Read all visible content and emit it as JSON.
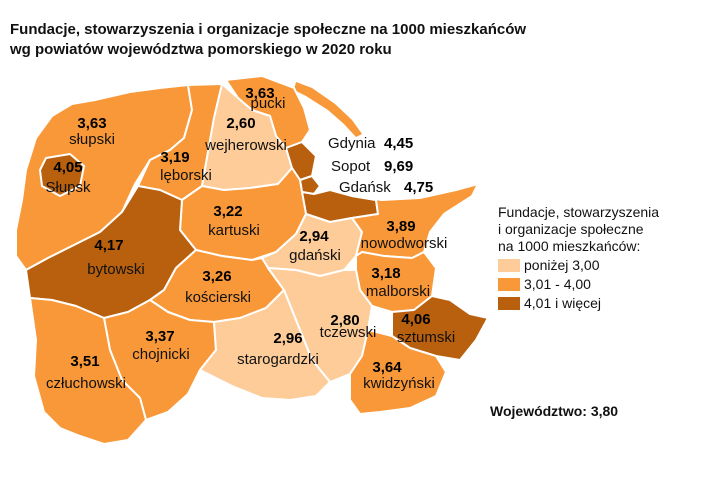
{
  "title": {
    "line1": "Fundacje, stowarzyszenia i organizacje społeczne na 1000 mieszkańców",
    "line2": "wg powiatów województwa pomorskiego w 2020 roku"
  },
  "colors": {
    "low": "#fdcc98",
    "mid": "#f99838",
    "high": "#b8600d"
  },
  "regions": {
    "slupski": {
      "name": "słupski",
      "value": "3,63",
      "class": "mid"
    },
    "slupsk": {
      "name": "Słupsk",
      "value": "4,05",
      "class": "high"
    },
    "leborski": {
      "name": "lęborski",
      "value": "3,19",
      "class": "mid"
    },
    "pucki": {
      "name": "pucki",
      "value": "3,63",
      "class": "mid"
    },
    "wejherowski": {
      "name": "wejherowski",
      "value": "2,60",
      "class": "low"
    },
    "gdynia": {
      "name": "Gdynia",
      "value": "4,45",
      "class": "high"
    },
    "sopot": {
      "name": "Sopot",
      "value": "9,69",
      "class": "high"
    },
    "gdansk": {
      "name": "Gdańsk",
      "value": "4,75",
      "class": "high"
    },
    "kartuski": {
      "name": "kartuski",
      "value": "3,22",
      "class": "mid"
    },
    "bytowski": {
      "name": "bytowski",
      "value": "4,17",
      "class": "high"
    },
    "gdanski": {
      "name": "gdański",
      "value": "2,94",
      "class": "low"
    },
    "nowodworski": {
      "name": "nowodworski",
      "value": "3,89",
      "class": "mid"
    },
    "koscierski": {
      "name": "kościerski",
      "value": "3,26",
      "class": "mid"
    },
    "malborski": {
      "name": "malborski",
      "value": "3,18",
      "class": "mid"
    },
    "tczewski": {
      "name": "tczewski",
      "value": "2,80",
      "class": "low"
    },
    "sztumski": {
      "name": "sztumski",
      "value": "4,06",
      "class": "high"
    },
    "chojnicki": {
      "name": "chojnicki",
      "value": "3,37",
      "class": "mid"
    },
    "starogardzki": {
      "name": "starogardzki",
      "value": "2,96",
      "class": "low"
    },
    "czluchowski": {
      "name": "człuchowski",
      "value": "3,51",
      "class": "mid"
    },
    "kwidzynski": {
      "name": "kwidzyński",
      "value": "3,64",
      "class": "mid"
    }
  },
  "legend": {
    "title_line1": "Fundacje, stowarzyszenia",
    "title_line2": "i organizacje społeczne",
    "title_line3": "na 1000 mieszkańców:",
    "items": [
      "poniżej 3,00",
      "3,01 - 4,00",
      "4,01 i więcej"
    ]
  },
  "total": {
    "label": "Województwo:",
    "value": "3,80"
  }
}
